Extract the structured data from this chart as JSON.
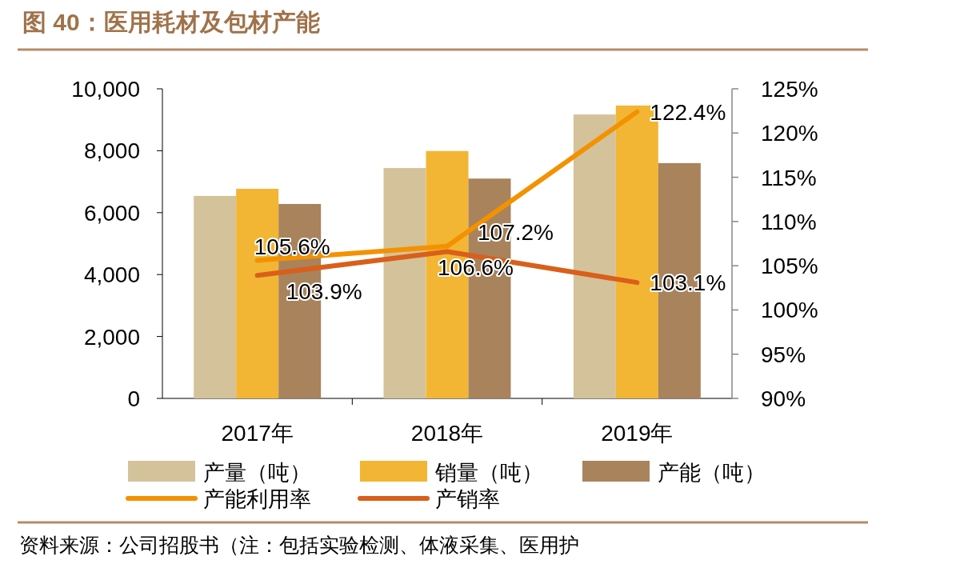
{
  "chart_data": {
    "type": "bar",
    "title": "图 40：医用耗材及包材产能",
    "categories": [
      "2017年",
      "2018年",
      "2019年"
    ],
    "series": [
      {
        "name": "产量（吨）",
        "color": "#d4c29a",
        "values": [
          6540,
          7440,
          9170
        ]
      },
      {
        "name": "销量（吨）",
        "color": "#f2b634",
        "values": [
          6770,
          7990,
          9460
        ]
      },
      {
        "name": "产能（吨）",
        "color": "#a8835c",
        "values": [
          6280,
          7100,
          7600
        ]
      },
      {
        "name": "产能利用率",
        "type": "line",
        "axis": "y2",
        "color": "#f39200",
        "values": [
          105.6,
          107.2,
          122.4
        ],
        "value_labels": [
          "105.6%",
          "107.2%",
          "122.4%"
        ]
      },
      {
        "name": "产销率",
        "type": "line",
        "axis": "y2",
        "color": "#d95f1a",
        "values": [
          103.9,
          106.6,
          103.1
        ],
        "value_labels": [
          "103.9%",
          "106.6%",
          "103.1%"
        ]
      }
    ],
    "ylim": [
      0,
      10000
    ],
    "yticks": [
      0,
      {
        "value": 2000,
        "label": "2,000"
      },
      {
        "value": 4000,
        "label": "4,000"
      },
      {
        "value": 6000,
        "label": "6,000"
      },
      {
        "value": 8000,
        "label": "8,000"
      },
      {
        "value": 10000,
        "label": "10,000"
      }
    ],
    "y2lim": [
      90,
      125
    ],
    "y2ticks": [
      {
        "value": 90,
        "label": "90%"
      },
      {
        "value": 95,
        "label": "95%"
      },
      {
        "value": 100,
        "label": "100%"
      },
      {
        "value": 105,
        "label": "105%"
      },
      {
        "value": 110,
        "label": "110%"
      },
      {
        "value": 115,
        "label": "115%"
      },
      {
        "value": 120,
        "label": "120%"
      },
      {
        "value": 125,
        "label": "125%"
      }
    ],
    "grid": false,
    "legend": "bottom",
    "annotations": [
      "资料来源：公司招股书（注：包括实验检测、体液采集、医用护"
    ]
  }
}
